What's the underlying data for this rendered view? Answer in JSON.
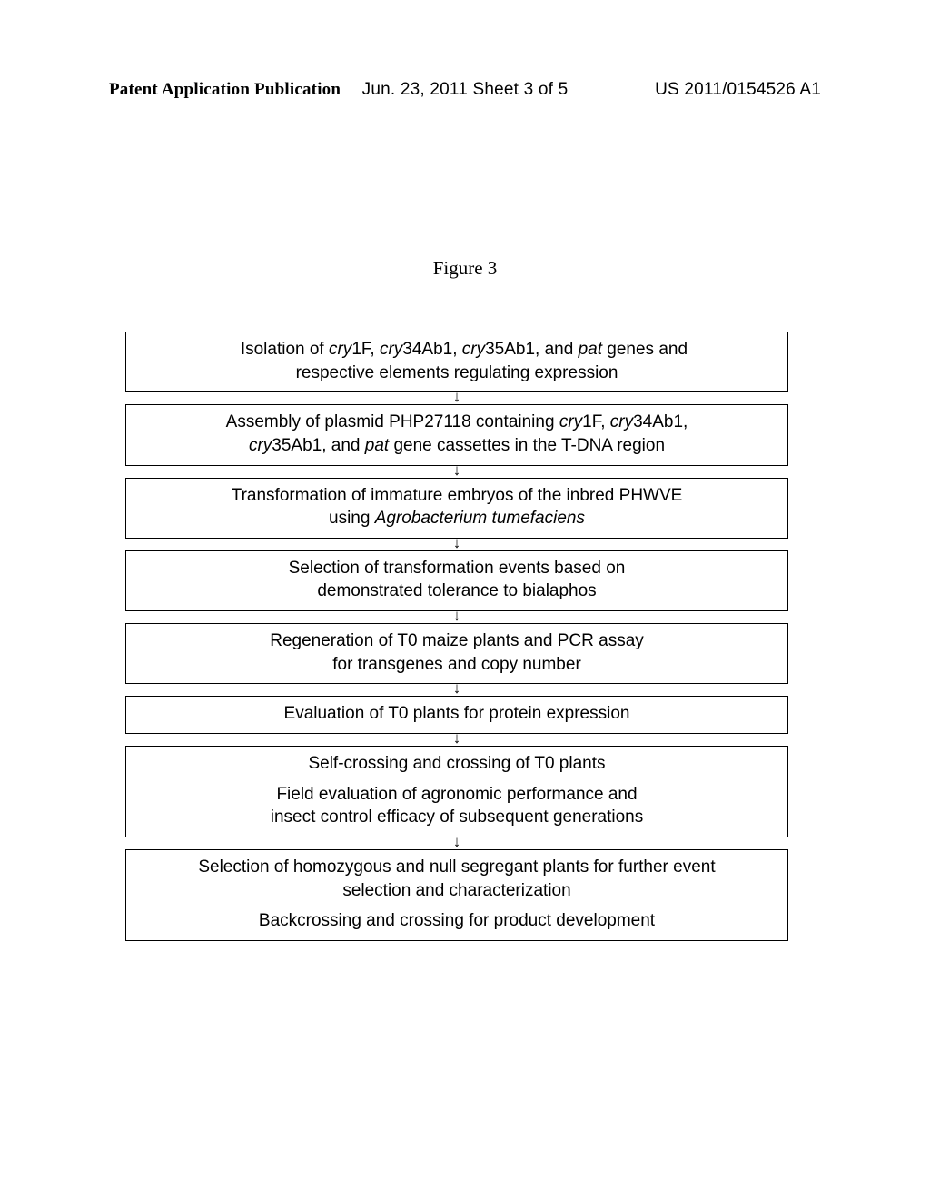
{
  "header": {
    "left": "Patent Application Publication",
    "center": "Jun. 23, 2011  Sheet 3 of 5",
    "right": "US 2011/0154526 A1"
  },
  "figure_title": "Figure 3",
  "flow": {
    "box_border_color": "#000000",
    "background_color": "#ffffff",
    "font_size": 19,
    "arrow_glyph": "↓",
    "boxes": [
      {
        "lines": [
          {
            "segments": [
              {
                "t": "   ",
                "prefix": true
              },
              {
                "t": "Isolation of "
              },
              {
                "t": "cry",
                "ital": true
              },
              {
                "t": "1F, "
              },
              {
                "t": "cry",
                "ital": true
              },
              {
                "t": "34Ab1, "
              },
              {
                "t": "cry",
                "ital": true
              },
              {
                "t": "35Ab1, and "
              },
              {
                "t": "pat",
                "ital": true
              },
              {
                "t": " genes and"
              }
            ]
          },
          {
            "segments": [
              {
                "t": "respective elements regulating expression"
              }
            ]
          }
        ],
        "arrow_after": true
      },
      {
        "lines": [
          {
            "segments": [
              {
                "t": "Assembly of plasmid PHP27118 containing "
              },
              {
                "t": "cry",
                "ital": true
              },
              {
                "t": "1F, "
              },
              {
                "t": "cry",
                "ital": true
              },
              {
                "t": "34Ab1,"
              }
            ]
          },
          {
            "segments": [
              {
                "t": "cry",
                "ital": true
              },
              {
                "t": "35Ab1, and "
              },
              {
                "t": "pat",
                "ital": true
              },
              {
                "t": " gene cassettes in the T-DNA region"
              }
            ]
          }
        ],
        "arrow_after": true
      },
      {
        "lines": [
          {
            "segments": [
              {
                "t": "Transformation of immature embryos of the inbred PHWVE"
              }
            ]
          },
          {
            "segments": [
              {
                "t": "using "
              },
              {
                "t": "Agrobacterium tumefaciens",
                "ital": true
              }
            ]
          }
        ],
        "arrow_after": true
      },
      {
        "lines": [
          {
            "segments": [
              {
                "t": "Selection of transformation events based on"
              }
            ]
          },
          {
            "segments": [
              {
                "t": "demonstrated tolerance to bialaphos"
              }
            ]
          }
        ],
        "arrow_after": true
      },
      {
        "lines": [
          {
            "segments": [
              {
                "t": "Regeneration of T0 maize plants and PCR assay"
              }
            ]
          },
          {
            "segments": [
              {
                "t": "for transgenes and copy number"
              }
            ]
          }
        ],
        "arrow_after": true
      },
      {
        "lines": [
          {
            "segments": [
              {
                "t": "Evaluation of T0 plants for protein expression"
              }
            ]
          }
        ],
        "arrow_after": true
      },
      {
        "lines": [
          {
            "segments": [
              {
                "t": "Self-crossing and crossing of T0 plants"
              }
            ]
          },
          {
            "spacer": true
          },
          {
            "segments": [
              {
                "t": "Field evaluation of agronomic performance and"
              }
            ]
          },
          {
            "segments": [
              {
                "t": "insect control efficacy of subsequent generations"
              }
            ]
          }
        ],
        "arrow_after": true
      },
      {
        "lines": [
          {
            "segments": [
              {
                "t": "Selection of homozygous and null segregant plants for further event"
              }
            ]
          },
          {
            "segments": [
              {
                "t": "selection and characterization"
              }
            ]
          },
          {
            "spacer": true
          },
          {
            "segments": [
              {
                "t": "Backcrossing and crossing for product development"
              }
            ]
          }
        ],
        "arrow_after": false
      }
    ]
  }
}
